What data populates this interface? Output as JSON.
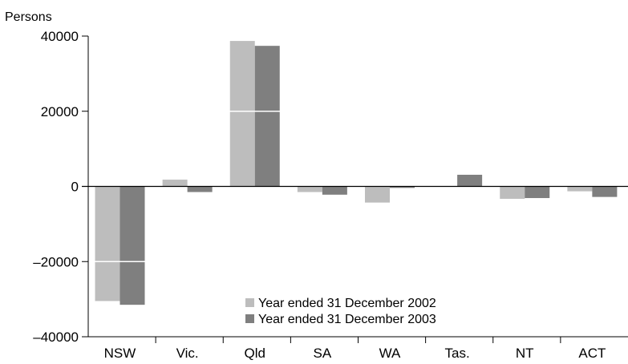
{
  "chart_data": {
    "type": "bar",
    "title": "",
    "xlabel": "",
    "ylabel": "Persons",
    "ylim": [
      -40000,
      40000
    ],
    "yticks": [
      -40000,
      -20000,
      0,
      20000,
      40000
    ],
    "grid": false,
    "legend_position": "bottom-center",
    "categories": [
      "NSW",
      "Vic.",
      "Qld",
      "SA",
      "WA",
      "Tas.",
      "NT",
      "ACT"
    ],
    "series": [
      {
        "name": "Year ended 31 December 2002",
        "color": "#bdbdbd",
        "values": [
          -30500,
          1800,
          38700,
          -1500,
          -4300,
          0,
          -3300,
          -1300
        ]
      },
      {
        "name": "Year ended 31 December 2003",
        "color": "#7f7f7f",
        "values": [
          -31500,
          -1500,
          37400,
          -2200,
          -400,
          3100,
          -3100,
          -2800
        ]
      }
    ]
  }
}
